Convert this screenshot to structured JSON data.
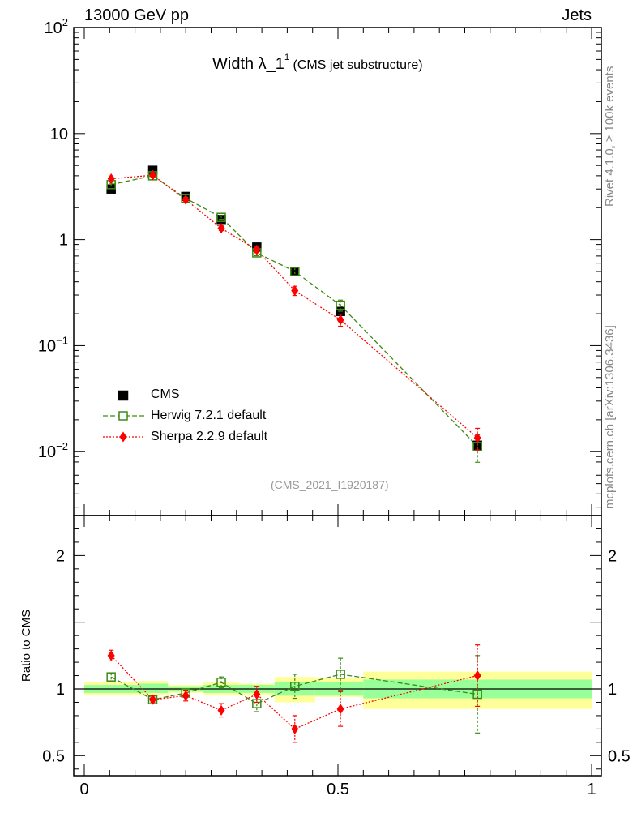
{
  "header": {
    "left": "13000 GeV pp",
    "right": "Jets",
    "title_main": "Width λ_1",
    "title_sup": "1",
    "title_sub": " (CMS jet substructure)",
    "watermark": "(CMS_2021_I1920187)",
    "side_rivet": "Rivet 4.1.0, ≥ 100k events",
    "side_mcplots": "mcplots.cern.ch [arXiv:1306.3436]"
  },
  "colors": {
    "data": "#000000",
    "herwig": "#3a8a12",
    "sherpa": "#ff0000",
    "band_inner": "#99ff99",
    "band_outer": "#ffff99"
  },
  "chart_data": {
    "type": "scatter",
    "title": "Width λ_1^1 (CMS jet substructure)",
    "xlabel": "",
    "ylabel_ratio": "Ratio to CMS",
    "xlim": [
      0,
      1
    ],
    "ylim_main": [
      0.0025,
      100
    ],
    "ylim_ratio": [
      0.35,
      2.3
    ],
    "yscale_main": "log",
    "x_ticks": [
      "0",
      "0.5",
      "1"
    ],
    "y_ticks_main": [
      {
        "value": 100,
        "base": "10",
        "exp": "2"
      },
      {
        "value": 10,
        "base": "10",
        "exp": ""
      },
      {
        "value": 1,
        "base": "1",
        "exp": ""
      },
      {
        "value": 0.1,
        "base": "10",
        "exp": "−1"
      },
      {
        "value": 0.01,
        "base": "10",
        "exp": "−2"
      }
    ],
    "y_ticks_ratio": [
      {
        "value": 2,
        "label": "2"
      },
      {
        "value": 1,
        "label": "1"
      },
      {
        "value": 0.5,
        "label": "0.5"
      }
    ],
    "bins": [
      [
        0.0,
        0.105
      ],
      [
        0.105,
        0.165
      ],
      [
        0.165,
        0.235
      ],
      [
        0.235,
        0.305
      ],
      [
        0.305,
        0.375
      ],
      [
        0.375,
        0.455
      ],
      [
        0.455,
        0.55
      ],
      [
        0.55,
        1.0
      ]
    ],
    "x": [
      0.053,
      0.135,
      0.2,
      0.27,
      0.34,
      0.415,
      0.505,
      0.775
    ],
    "legend_position": "bottom-left",
    "series": [
      {
        "name": "CMS",
        "style": "data",
        "values": [
          3.0,
          4.5,
          2.55,
          1.55,
          0.85,
          0.5,
          0.21,
          0.0115
        ],
        "band_inner": [
          [
            0.97,
            1.03
          ],
          [
            0.97,
            1.04
          ],
          [
            0.98,
            1.02
          ],
          [
            0.97,
            1.03
          ],
          [
            0.97,
            1.03
          ],
          [
            0.95,
            1.05
          ],
          [
            0.95,
            1.05
          ],
          [
            0.93,
            1.07
          ]
        ],
        "band_outer": [
          [
            0.95,
            1.05
          ],
          [
            0.95,
            1.06
          ],
          [
            0.97,
            1.03
          ],
          [
            0.95,
            1.05
          ],
          [
            0.95,
            1.04
          ],
          [
            0.9,
            1.09
          ],
          [
            0.94,
            1.08
          ],
          [
            0.85,
            1.13
          ]
        ]
      },
      {
        "name": "Herwig 7.2.1 default",
        "style": "herwig",
        "values": [
          3.3,
          4.0,
          2.45,
          1.62,
          0.75,
          0.5,
          0.24,
          0.0112
        ],
        "ratio": [
          1.09,
          0.92,
          0.97,
          1.05,
          0.89,
          1.02,
          1.11,
          0.96
        ],
        "ratio_err": [
          0.03,
          0.02,
          0.02,
          0.04,
          0.06,
          0.09,
          0.12,
          0.29
        ]
      },
      {
        "name": "Sherpa 2.2.9 default",
        "style": "sherpa",
        "values": [
          3.75,
          4.05,
          2.38,
          1.28,
          0.8,
          0.33,
          0.175,
          0.0135
        ],
        "ratio": [
          1.25,
          0.92,
          0.95,
          0.84,
          0.96,
          0.7,
          0.85,
          1.1
        ],
        "ratio_err": [
          0.04,
          0.03,
          0.04,
          0.05,
          0.06,
          0.1,
          0.13,
          0.23
        ]
      }
    ]
  }
}
